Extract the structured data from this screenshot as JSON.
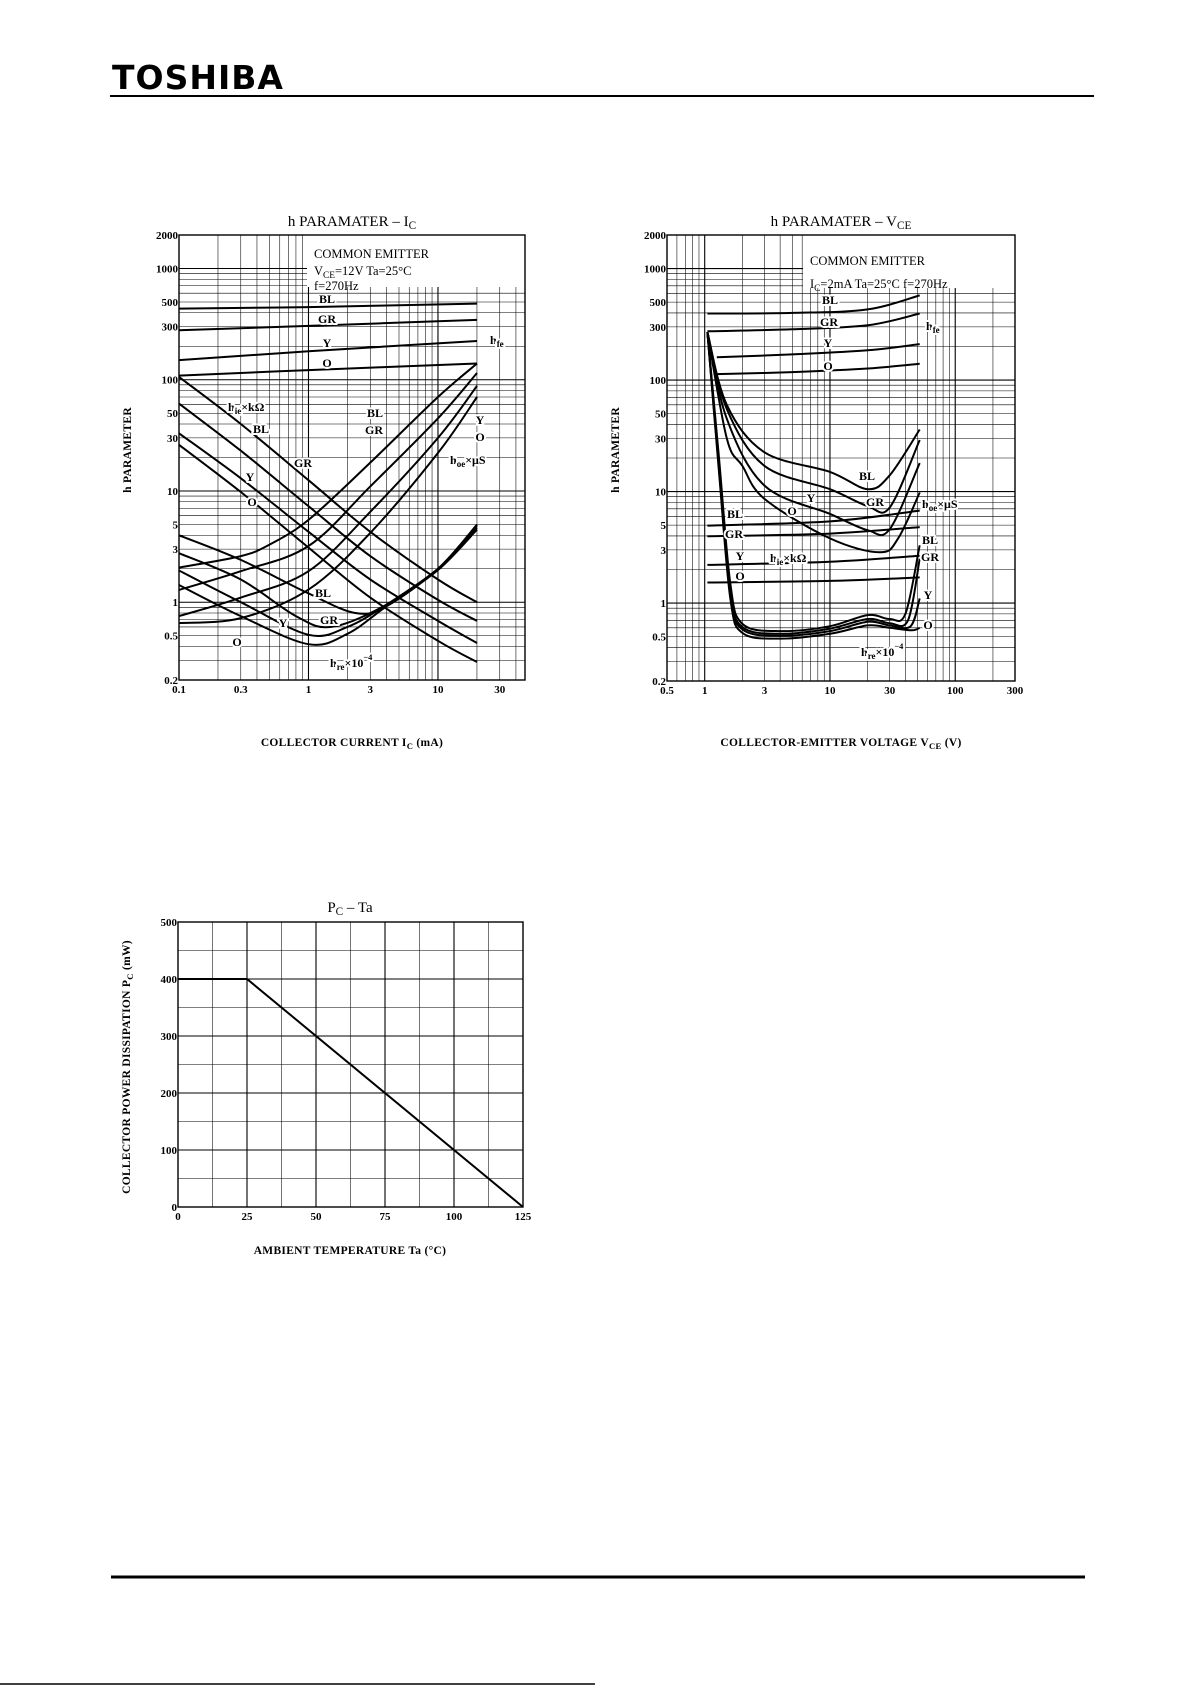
{
  "header": {
    "brand": "TOSHIBA"
  },
  "chart_data": [
    {
      "type": "line",
      "title": {
        "main": "h PARAMATER  –  I",
        "sub": "C"
      },
      "xlabel": {
        "main": "COLLECTOR CURRENT   I",
        "sub": "C",
        "rest": "   (mA)"
      },
      "ylabel": "h PARAMETER",
      "xscale": "log",
      "yscale": "log",
      "xlim": [
        0.1,
        47
      ],
      "ylim": [
        0.2,
        2000
      ],
      "grid": true,
      "xticks": [
        "0.1",
        "0.3",
        "1",
        "3",
        "10",
        "30"
      ],
      "yticks": [
        "0.2",
        "0.5",
        "1",
        "3",
        "5",
        "10",
        "30",
        "50",
        "100",
        "300",
        "500",
        "1000",
        "2000"
      ],
      "conditions": [
        "COMMON EMITTER",
        {
          "main": "V",
          "sub": "CE",
          "rest": "=12V    Ta=25°C"
        },
        "f=270Hz"
      ],
      "annotations": [
        "BL",
        "GR",
        "Y",
        "O",
        {
          "base": "h",
          "sub": "fe"
        },
        {
          "base": "h",
          "sub": "ie",
          "rest": "×kΩ"
        },
        "BL",
        "GR",
        "Y",
        "O",
        "BL",
        "GR",
        "Y",
        "O",
        {
          "base": "h",
          "sub": "oe",
          "rest": "×μS"
        },
        "BL",
        "GR",
        "Y",
        "O",
        {
          "base": "h",
          "sub": "re",
          "rest": "×10",
          "sup": "−4"
        }
      ],
      "series": [
        {
          "name": "hfe BL",
          "points": [
            [
              0.1,
              436
            ],
            [
              1,
              450
            ],
            [
              20,
              484
            ]
          ]
        },
        {
          "name": "hfe GR",
          "points": [
            [
              0.1,
              278
            ],
            [
              1,
              305
            ],
            [
              20,
              345
            ]
          ]
        },
        {
          "name": "hfe Y",
          "points": [
            [
              0.1,
              150
            ],
            [
              1,
              180
            ],
            [
              20,
              223
            ]
          ]
        },
        {
          "name": "hfe O",
          "points": [
            [
              0.1,
              109
            ],
            [
              1,
              122
            ],
            [
              20,
              140
            ]
          ]
        },
        {
          "name": "hie BL",
          "points": [
            [
              0.1,
              106
            ],
            [
              0.3,
              40
            ],
            [
              1,
              12.5
            ],
            [
              3,
              4.3
            ],
            [
              10,
              1.6
            ],
            [
              20,
              1.0
            ]
          ]
        },
        {
          "name": "hie GR",
          "points": [
            [
              0.1,
              61
            ],
            [
              0.3,
              23
            ],
            [
              1,
              7.3
            ],
            [
              3,
              2.6
            ],
            [
              10,
              1.05
            ],
            [
              20,
              0.68
            ]
          ]
        },
        {
          "name": "hie Y",
          "points": [
            [
              0.1,
              33
            ],
            [
              0.3,
              13
            ],
            [
              1,
              4.3
            ],
            [
              3,
              1.6
            ],
            [
              10,
              0.68
            ],
            [
              20,
              0.43
            ]
          ]
        },
        {
          "name": "hie O",
          "points": [
            [
              0.1,
              26
            ],
            [
              0.3,
              9.8
            ],
            [
              1,
              3.1
            ],
            [
              3,
              1.1
            ],
            [
              10,
              0.45
            ],
            [
              20,
              0.29
            ]
          ]
        },
        {
          "name": "hoe BL",
          "points": [
            [
              0.1,
              2.05
            ],
            [
              0.3,
              2.6
            ],
            [
              0.5,
              3.3
            ],
            [
              1,
              5.5
            ],
            [
              3,
              18
            ],
            [
              10,
              70
            ],
            [
              20,
              140
            ]
          ]
        },
        {
          "name": "hoe GR",
          "points": [
            [
              0.1,
              1.29
            ],
            [
              0.3,
              1.9
            ],
            [
              1,
              3.2
            ],
            [
              3,
              11
            ],
            [
              10,
              45
            ],
            [
              20,
              115
            ]
          ]
        },
        {
          "name": "hoe Y",
          "points": [
            [
              0.1,
              0.75
            ],
            [
              0.3,
              1.1
            ],
            [
              1,
              1.9
            ],
            [
              3,
              6.5
            ],
            [
              10,
              30
            ],
            [
              20,
              88
            ]
          ]
        },
        {
          "name": "hoe O",
          "points": [
            [
              0.1,
              0.65
            ],
            [
              0.3,
              0.72
            ],
            [
              1,
              1.3
            ],
            [
              3,
              4.2
            ],
            [
              10,
              22
            ],
            [
              20,
              70
            ]
          ]
        },
        {
          "name": "hre BL",
          "points": [
            [
              0.1,
              4.0
            ],
            [
              0.3,
              2.4
            ],
            [
              1,
              1.2
            ],
            [
              2.3,
              0.8
            ],
            [
              4,
              0.92
            ],
            [
              10,
              2.0
            ],
            [
              20,
              5.0
            ]
          ]
        },
        {
          "name": "hre GR",
          "points": [
            [
              0.1,
              2.76
            ],
            [
              0.3,
              1.6
            ],
            [
              0.8,
              0.75
            ],
            [
              1.5,
              0.6
            ],
            [
              4,
              0.95
            ],
            [
              10,
              2.0
            ],
            [
              20,
              4.9
            ]
          ]
        },
        {
          "name": "hre Y",
          "points": [
            [
              0.1,
              1.93
            ],
            [
              0.3,
              1.0
            ],
            [
              1,
              0.51
            ],
            [
              2,
              0.6
            ],
            [
              4,
              0.95
            ],
            [
              10,
              2.0
            ],
            [
              20,
              4.7
            ]
          ]
        },
        {
          "name": "hre O",
          "points": [
            [
              0.1,
              1.43
            ],
            [
              0.3,
              0.75
            ],
            [
              1,
              0.42
            ],
            [
              2,
              0.52
            ],
            [
              4,
              0.92
            ],
            [
              10,
              1.95
            ],
            [
              20,
              4.5
            ]
          ]
        }
      ]
    },
    {
      "type": "line",
      "title": {
        "main": "h PARAMATER  –  V",
        "sub": "CE"
      },
      "xlabel": {
        "main": "COLLECTOR-EMITTER VOLTAGE   V",
        "sub": "CE",
        "rest": "   (V)"
      },
      "ylabel": "h PARAMETER",
      "xscale": "log",
      "yscale": "log",
      "xlim": [
        0.5,
        300
      ],
      "ylim": [
        0.2,
        2000
      ],
      "grid": true,
      "xticks": [
        "0.5",
        "1",
        "3",
        "10",
        "30",
        "100",
        "300"
      ],
      "yticks": [
        "0.2",
        "0.5",
        "1",
        "3",
        "5",
        "10",
        "30",
        "50",
        "100",
        "300",
        "500",
        "1000",
        "2000"
      ],
      "conditions": [
        "COMMON EMITTER",
        {
          "main": "I",
          "sub": "C",
          "rest": "=2mA    Ta=25°C    f=270Hz"
        }
      ],
      "annotations": [
        "BL",
        "GR",
        "Y",
        "O",
        {
          "base": "h",
          "sub": "fe"
        },
        "BL",
        "GR",
        "Y",
        "O",
        {
          "base": "h",
          "sub": "oe",
          "rest": "×μS"
        },
        "BL",
        "GR",
        "Y",
        {
          "base": "h",
          "sub": "ie",
          "rest": "×kΩ"
        },
        "O",
        "BL",
        "GR",
        "Y",
        "O",
        {
          "base": "h",
          "sub": "re",
          "rest": "×10",
          "sup": "−4"
        }
      ],
      "series": [
        {
          "name": "hfe BL",
          "points": [
            [
              1.05,
              395
            ],
            [
              5,
              400
            ],
            [
              20,
              430
            ],
            [
              52,
              575
            ]
          ]
        },
        {
          "name": "hfe GR",
          "points": [
            [
              1.05,
              274
            ],
            [
              5,
              285
            ],
            [
              20,
              310
            ],
            [
              52,
              395
            ]
          ]
        },
        {
          "name": "hfe Y",
          "points": [
            [
              1.25,
              160
            ],
            [
              5,
              170
            ],
            [
              20,
              185
            ],
            [
              52,
              210
            ]
          ]
        },
        {
          "name": "hfe O",
          "points": [
            [
              1.25,
              113
            ],
            [
              5,
              118
            ],
            [
              20,
              127
            ],
            [
              52,
              140
            ]
          ]
        },
        {
          "name": "hie BL",
          "points": [
            [
              1.05,
              270
            ],
            [
              1.5,
              60
            ],
            [
              3,
              22.5
            ],
            [
              10,
              15
            ],
            [
              20,
              10.5
            ],
            [
              30,
              14
            ],
            [
              52,
              36
            ]
          ]
        },
        {
          "name": "hie GR",
          "points": [
            [
              1.05,
              270
            ],
            [
              1.5,
              55
            ],
            [
              3,
              17
            ],
            [
              10,
              10.5
            ],
            [
              20,
              7.4
            ],
            [
              30,
              7.2
            ],
            [
              52,
              29
            ]
          ]
        },
        {
          "name": "hie Y",
          "points": [
            [
              1.05,
              270
            ],
            [
              1.5,
              45
            ],
            [
              3,
              11.3
            ],
            [
              10,
              6.3
            ],
            [
              20,
              4.5
            ],
            [
              30,
              4.6
            ],
            [
              52,
              18
            ]
          ]
        },
        {
          "name": "hie O",
          "points": [
            [
              1.05,
              270
            ],
            [
              1.5,
              30
            ],
            [
              2,
              17
            ],
            [
              3,
              8.6
            ],
            [
              10,
              3.8
            ],
            [
              25,
              2.85
            ],
            [
              35,
              3.8
            ],
            [
              52,
              9.8
            ]
          ]
        },
        {
          "name": "hoe BL",
          "points": [
            [
              1.05,
              4.95
            ],
            [
              10,
              5.4
            ],
            [
              52,
              6.75
            ]
          ]
        },
        {
          "name": "hoe GR",
          "points": [
            [
              1.05,
              3.97
            ],
            [
              10,
              4.2
            ],
            [
              52,
              4.8
            ]
          ]
        },
        {
          "name": "hoe Y",
          "points": [
            [
              1.05,
              2.2
            ],
            [
              10,
              2.35
            ],
            [
              52,
              2.66
            ]
          ]
        },
        {
          "name": "hoe O",
          "points": [
            [
              1.05,
              1.53
            ],
            [
              10,
              1.58
            ],
            [
              52,
              1.7
            ]
          ]
        },
        {
          "name": "hre BL",
          "points": [
            [
              1.05,
              270
            ],
            [
              1.3,
              20
            ],
            [
              1.6,
              1.5
            ],
            [
              2,
              0.65
            ],
            [
              4,
              0.56
            ],
            [
              10,
              0.62
            ],
            [
              20,
              0.78
            ],
            [
              30,
              0.72
            ],
            [
              40,
              0.8
            ],
            [
              52,
              3.3
            ]
          ]
        },
        {
          "name": "hre GR",
          "points": [
            [
              1.05,
              270
            ],
            [
              1.3,
              18
            ],
            [
              1.6,
              1.3
            ],
            [
              2,
              0.61
            ],
            [
              4,
              0.53
            ],
            [
              10,
              0.59
            ],
            [
              20,
              0.72
            ],
            [
              30,
              0.66
            ],
            [
              42,
              0.7
            ],
            [
              52,
              2.5
            ]
          ]
        },
        {
          "name": "hre Y",
          "points": [
            [
              1.05,
              270
            ],
            [
              1.3,
              16
            ],
            [
              1.6,
              1.2
            ],
            [
              2,
              0.58
            ],
            [
              4,
              0.51
            ],
            [
              10,
              0.56
            ],
            [
              20,
              0.68
            ],
            [
              30,
              0.63
            ],
            [
              44,
              0.62
            ],
            [
              52,
              1.1
            ]
          ]
        },
        {
          "name": "hre O",
          "points": [
            [
              1.05,
              270
            ],
            [
              1.3,
              15
            ],
            [
              1.6,
              1.1
            ],
            [
              2,
              0.54
            ],
            [
              4,
              0.48
            ],
            [
              10,
              0.53
            ],
            [
              20,
              0.63
            ],
            [
              30,
              0.6
            ],
            [
              45,
              0.57
            ],
            [
              52,
              0.6
            ]
          ]
        }
      ]
    },
    {
      "type": "line",
      "title": {
        "main": "P",
        "sub": "C",
        "rest": "  –  Ta"
      },
      "xlabel": {
        "main": "AMBIENT TEMPERATURE   Ta   (°C)"
      },
      "ylabel": {
        "main": "COLLECTOR POWER DISSIPATION   P",
        "sub": "C",
        "rest": "   (mW)"
      },
      "xscale": "linear",
      "yscale": "linear",
      "xlim": [
        0,
        125
      ],
      "ylim": [
        0,
        500
      ],
      "grid": true,
      "xticks": [
        "0",
        "25",
        "50",
        "75",
        "100",
        "125"
      ],
      "yticks": [
        "0",
        "100",
        "200",
        "300",
        "400",
        "500"
      ],
      "series": [
        {
          "name": "Pc",
          "points": [
            [
              0,
              400
            ],
            [
              25,
              400
            ],
            [
              125,
              0
            ]
          ]
        }
      ]
    }
  ]
}
